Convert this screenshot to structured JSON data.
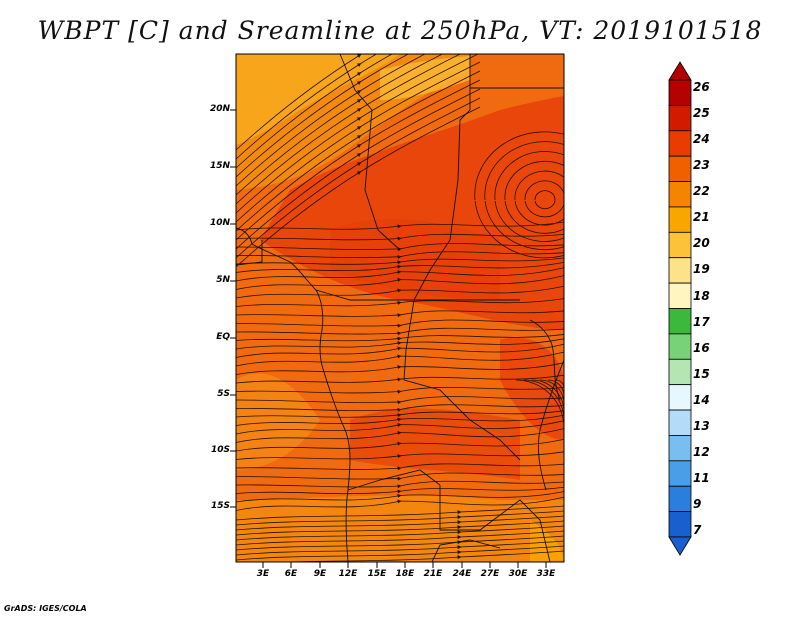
{
  "title": "WBPT [C] and Sreamline at 250hPa, VT: 2019101518",
  "footer": "GrADS: IGES/COLA",
  "map": {
    "lat_labels": [
      "20N",
      "15N",
      "10N",
      "5N",
      "EQ",
      "5S",
      "10S",
      "15S"
    ],
    "lon_labels": [
      "3E",
      "6E",
      "9E",
      "12E",
      "15E",
      "18E",
      "21E",
      "24E",
      "27E",
      "30E",
      "33E"
    ]
  },
  "colorbar": {
    "labels": [
      "26",
      "25",
      "24",
      "23",
      "22",
      "21",
      "20",
      "19",
      "18",
      "17",
      "16",
      "15",
      "14",
      "13",
      "12",
      "11",
      "9",
      "7"
    ],
    "colors": [
      "#b40000",
      "#d21a00",
      "#e83c00",
      "#f05f00",
      "#f58400",
      "#faa600",
      "#fcc23a",
      "#fee28a",
      "#fff5c0",
      "#3cb83c",
      "#78d278",
      "#b4e6b4",
      "#e6f7ff",
      "#b4dcf8",
      "#78bef0",
      "#4a9ee8",
      "#2a7ede",
      "#1a5fd0"
    ]
  },
  "colors": {
    "field_base": "#f06a10",
    "field_warm": "#e8460a",
    "field_light": "#f7a61c",
    "streamline": "#2a1000"
  }
}
